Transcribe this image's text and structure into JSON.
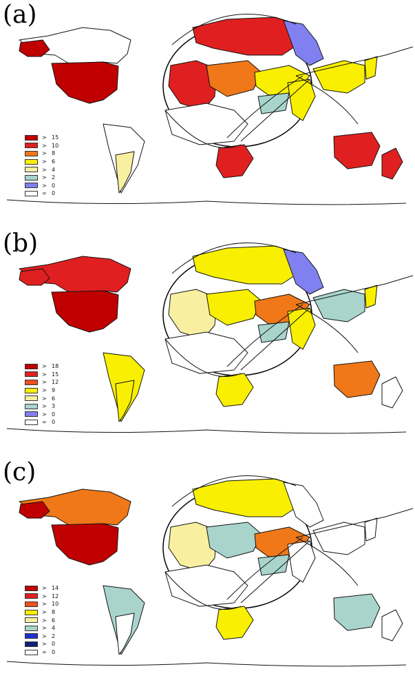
{
  "colors": {
    "dark_red": "#c00000",
    "red": "#e02020",
    "orange_red": "#f05020",
    "orange": "#f07818",
    "yellow": "#f8f000",
    "light_yellow": "#f8f0a0",
    "teal": "#a8d4cc",
    "periwinkle": "#8080f0",
    "blue": "#2030d0",
    "navy": "#10207a",
    "white": "#ffffff"
  },
  "panels": [
    {
      "label": "(a)",
      "legend": [
        {
          "op": ">",
          "value": "15",
          "color": "dark_red"
        },
        {
          "op": ">",
          "value": "10",
          "color": "red"
        },
        {
          "op": ">",
          "value": "8",
          "color": "orange"
        },
        {
          "op": ">",
          "value": "6",
          "color": "yellow"
        },
        {
          "op": ">",
          "value": "4",
          "color": "light_yellow"
        },
        {
          "op": ">",
          "value": "2",
          "color": "teal"
        },
        {
          "op": ">",
          "value": "0",
          "color": "periwinkle"
        },
        {
          "op": "=",
          "value": "0",
          "color": "white"
        }
      ],
      "regions": {
        "north_america": "white",
        "usa": "dark_red",
        "alaska": "dark_red",
        "south_america": "white",
        "argentina": "light_yellow",
        "europe_north": "red",
        "europe_west": "red",
        "europe_central": "orange",
        "middle_east": "yellow",
        "africa": "white",
        "south_africa": "red",
        "russia": "periwinkle",
        "china": "yellow",
        "india": "yellow",
        "central_asia": "teal",
        "japan": "yellow",
        "australia": "red",
        "new_zealand": "red"
      }
    },
    {
      "label": "(b)",
      "legend": [
        {
          "op": ">",
          "value": "18",
          "color": "dark_red"
        },
        {
          "op": ">",
          "value": "15",
          "color": "red"
        },
        {
          "op": ">",
          "value": "12",
          "color": "orange_red"
        },
        {
          "op": ">",
          "value": "9",
          "color": "yellow"
        },
        {
          "op": ">",
          "value": "6",
          "color": "light_yellow"
        },
        {
          "op": ">",
          "value": "3",
          "color": "teal"
        },
        {
          "op": ">",
          "value": "0",
          "color": "periwinkle"
        },
        {
          "op": "=",
          "value": "0",
          "color": "white"
        }
      ],
      "regions": {
        "north_america": "red",
        "usa": "dark_red",
        "alaska": "red",
        "south_america": "yellow",
        "argentina": "yellow",
        "europe_north": "yellow",
        "europe_west": "light_yellow",
        "europe_central": "yellow",
        "middle_east": "orange",
        "africa": "white",
        "south_africa": "yellow",
        "russia": "periwinkle",
        "china": "teal",
        "india": "yellow",
        "central_asia": "teal",
        "japan": "yellow",
        "australia": "orange",
        "new_zealand": "white"
      }
    },
    {
      "label": "(c)",
      "legend": [
        {
          "op": ">",
          "value": "14",
          "color": "dark_red"
        },
        {
          "op": ">",
          "value": "12",
          "color": "red"
        },
        {
          "op": ">",
          "value": "10",
          "color": "orange_red"
        },
        {
          "op": ">",
          "value": "8",
          "color": "yellow"
        },
        {
          "op": ">",
          "value": "6",
          "color": "light_yellow"
        },
        {
          "op": ">",
          "value": "4",
          "color": "teal"
        },
        {
          "op": ">",
          "value": "2",
          "color": "blue"
        },
        {
          "op": ">",
          "value": "0",
          "color": "navy"
        },
        {
          "op": "=",
          "value": "0",
          "color": "white"
        }
      ],
      "regions": {
        "north_america": "orange",
        "usa": "dark_red",
        "alaska": "dark_red",
        "south_america": "teal",
        "argentina": "white",
        "europe_north": "yellow",
        "europe_west": "light_yellow",
        "europe_central": "teal",
        "middle_east": "orange",
        "africa": "white",
        "south_africa": "yellow",
        "russia": "white",
        "china": "white",
        "india": "white",
        "central_asia": "teal",
        "japan": "white",
        "australia": "teal",
        "new_zealand": "white"
      }
    }
  ]
}
